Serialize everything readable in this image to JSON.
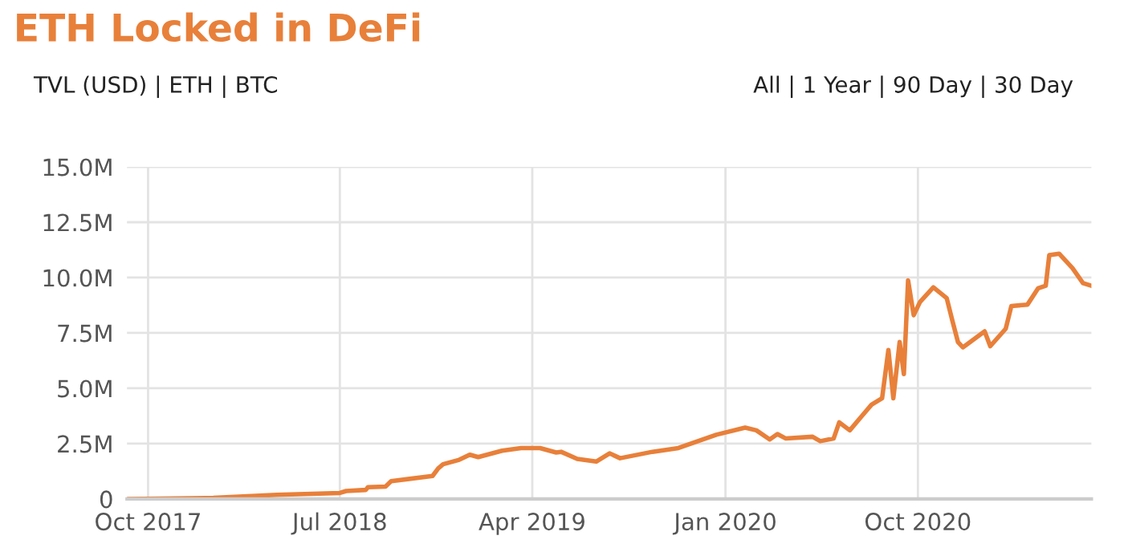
{
  "chart_data": {
    "type": "line",
    "title": "ETH Locked in DeFi",
    "annotations": [
      "TVL (USD) | ETH | BTC",
      "All | 1 Year | 90 Day | 30 Day"
    ],
    "x": [
      "2017-09-02",
      "2018-01-02",
      "2018-04-03",
      "2018-07-01",
      "2018-07-10",
      "2018-08-07",
      "2018-08-10",
      "2018-09-04",
      "2018-09-12",
      "2018-11-10",
      "2018-11-18",
      "2018-11-25",
      "2018-12-18",
      "2019-01-02",
      "2019-01-14",
      "2019-02-17",
      "2019-03-16",
      "2019-04-12",
      "2019-05-05",
      "2019-05-12",
      "2019-06-04",
      "2019-07-01",
      "2019-07-20",
      "2019-08-04",
      "2019-09-19",
      "2019-10-26",
      "2019-12-19",
      "2020-01-29",
      "2020-02-14",
      "2020-03-04",
      "2020-03-15",
      "2020-03-27",
      "2020-05-04",
      "2020-05-15",
      "2020-06-03",
      "2020-06-11",
      "2020-06-26",
      "2020-07-12",
      "2020-07-27",
      "2020-08-11",
      "2020-08-20",
      "2020-08-27",
      "2020-09-05",
      "2020-09-11",
      "2020-09-17",
      "2020-09-25",
      "2020-10-04",
      "2020-10-23",
      "2020-11-11",
      "2020-11-19",
      "2020-11-27",
      "2020-12-04",
      "2021-01-04",
      "2021-01-12",
      "2021-02-03",
      "2021-02-11",
      "2021-03-06",
      "2021-03-21",
      "2021-04-01",
      "2021-04-06",
      "2021-04-20",
      "2021-05-09",
      "2021-05-24",
      "2021-06-05"
    ],
    "series": [
      {
        "color": "#e8803a",
        "values": [
          0,
          0.05,
          0.19,
          0.27,
          0.36,
          0.41,
          0.53,
          0.56,
          0.8,
          1.04,
          1.38,
          1.57,
          1.77,
          2.0,
          1.89,
          2.18,
          2.3,
          2.3,
          2.1,
          2.13,
          1.81,
          1.69,
          2.06,
          1.84,
          2.13,
          2.3,
          2.9,
          3.22,
          3.1,
          2.69,
          2.93,
          2.73,
          2.81,
          2.61,
          2.73,
          3.46,
          3.1,
          3.7,
          4.26,
          4.55,
          6.73,
          4.55,
          7.09,
          5.64,
          9.87,
          8.3,
          8.9,
          9.56,
          9.07,
          8.06,
          7.09,
          6.85,
          7.57,
          6.9,
          7.69,
          8.71,
          8.78,
          9.51,
          9.63,
          11.01,
          11.08,
          10.43,
          9.75,
          9.63
        ]
      }
    ],
    "xlim": [
      "2017-09-01",
      "2021-06-05"
    ],
    "xticks": [
      {
        "value": "2017-10-01",
        "label": "Oct 2017"
      },
      {
        "value": "2018-07-01",
        "label": "Jul 2018"
      },
      {
        "value": "2019-04-01",
        "label": "Apr 2019"
      },
      {
        "value": "2020-01-01",
        "label": "Jan 2020"
      },
      {
        "value": "2020-10-01",
        "label": "Oct 2020"
      }
    ],
    "ylim": [
      0,
      15
    ],
    "yticks": [
      0,
      {
        "value": 2.5,
        "label": "2.5M"
      },
      {
        "value": 5,
        "label": "5.0M"
      },
      {
        "value": 7.5,
        "label": "7.5M"
      },
      {
        "value": 10,
        "label": "10.0M"
      },
      {
        "value": 12.5,
        "label": "12.5M"
      },
      {
        "value": 15,
        "label": "15.0M"
      }
    ],
    "grid": true,
    "legend": false,
    "marker": "none",
    "line_style": "solid"
  }
}
